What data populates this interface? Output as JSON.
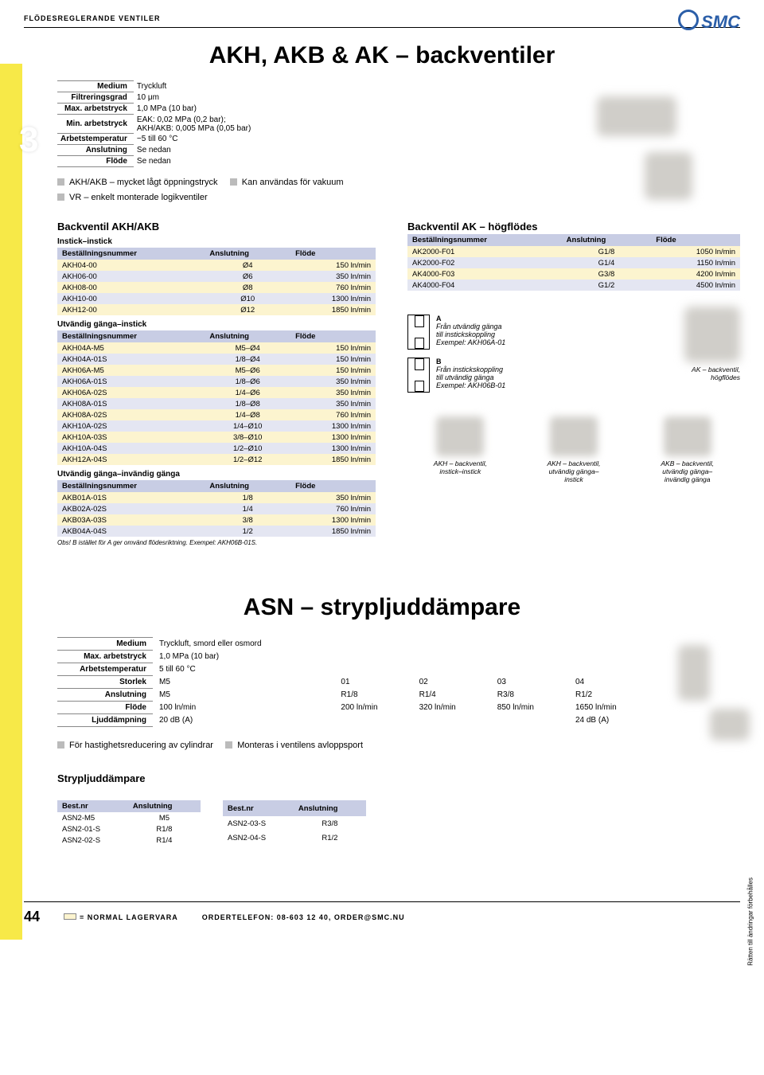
{
  "colors": {
    "yellow_strip": "#f7e948",
    "table_header": "#c8cde4",
    "row_odd": "#fcf4cf",
    "row_even": "#e4e6f2",
    "logo": "#2b5ea8",
    "bullet_square": "#bbbbbb"
  },
  "header": {
    "category": "FLÖDESREGLERANDE VENTILER",
    "logo": "SMC",
    "section_number": "3"
  },
  "title1": "AKH, AKB & AK – backventiler",
  "spec1": {
    "rows": [
      [
        "Medium",
        "Tryckluft"
      ],
      [
        "Filtreringsgrad",
        "10 μm"
      ],
      [
        "Max. arbetstryck",
        "1,0 MPa (10 bar)"
      ],
      [
        "Min. arbetstryck",
        "EAK: 0,02 MPa (0,2 bar);\nAKH/AKB: 0,005 MPa (0,05 bar)"
      ],
      [
        "Arbetstemperatur",
        "−5 till 60 °C"
      ],
      [
        "Anslutning",
        "Se nedan"
      ],
      [
        "Flöde",
        "Se nedan"
      ]
    ]
  },
  "bullets1": [
    "AKH/AKB – mycket lågt öppningstryck",
    "Kan användas för vakuum",
    "VR – enkelt monterade logikventiler"
  ],
  "left": {
    "heading": "Backventil AKH/AKB",
    "sub1": "Instick–instick",
    "cols": [
      "Beställningsnummer",
      "Anslutning",
      "Flöde"
    ],
    "t1": [
      [
        "AKH04-00",
        "Ø4",
        "150 ln/min"
      ],
      [
        "AKH06-00",
        "Ø6",
        "350 ln/min"
      ],
      [
        "AKH08-00",
        "Ø8",
        "760 ln/min"
      ],
      [
        "AKH10-00",
        "Ø10",
        "1300 ln/min"
      ],
      [
        "AKH12-00",
        "Ø12",
        "1850 ln/min"
      ]
    ],
    "sub2": "Utvändig gänga–instick",
    "t2": [
      [
        "AKH04A-M5",
        "M5–Ø4",
        "150 ln/min"
      ],
      [
        "AKH04A-01S",
        "1/8–Ø4",
        "150 ln/min"
      ],
      [
        "AKH06A-M5",
        "M5–Ø6",
        "150 ln/min"
      ],
      [
        "AKH06A-01S",
        "1/8–Ø6",
        "350 ln/min"
      ],
      [
        "AKH06A-02S",
        "1/4–Ø6",
        "350 ln/min"
      ],
      [
        "AKH08A-01S",
        "1/8–Ø8",
        "350 ln/min"
      ],
      [
        "AKH08A-02S",
        "1/4–Ø8",
        "760 ln/min"
      ],
      [
        "AKH10A-02S",
        "1/4–Ø10",
        "1300 ln/min"
      ],
      [
        "AKH10A-03S",
        "3/8–Ø10",
        "1300 ln/min"
      ],
      [
        "AKH10A-04S",
        "1/2–Ø10",
        "1300 ln/min"
      ],
      [
        "AKH12A-04S",
        "1/2–Ø12",
        "1850 ln/min"
      ]
    ],
    "sub3": "Utvändig gänga–invändig gänga",
    "t3": [
      [
        "AKB01A-01S",
        "1/8",
        "350 ln/min"
      ],
      [
        "AKB02A-02S",
        "1/4",
        "760 ln/min"
      ],
      [
        "AKB03A-03S",
        "3/8",
        "1300 ln/min"
      ],
      [
        "AKB04A-04S",
        "1/2",
        "1850 ln/min"
      ]
    ],
    "obs": "Obs! B istället för A ger omvänd flödesriktning. Exempel: AKH06B-01S."
  },
  "right": {
    "heading": "Backventil AK – högflödes",
    "cols": [
      "Beställningsnummer",
      "Anslutning",
      "Flöde"
    ],
    "t1": [
      [
        "AK2000-F01",
        "G1/8",
        "1050 ln/min"
      ],
      [
        "AK2000-F02",
        "G1/4",
        "1150 ln/min"
      ],
      [
        "AK4000-F03",
        "G3/8",
        "4200 ln/min"
      ],
      [
        "AK4000-F04",
        "G1/2",
        "4500 ln/min"
      ]
    ],
    "diagA": {
      "label": "A",
      "text": "Från utvändig gänga\ntill instickskoppling\nExempel: AKH06A-01"
    },
    "diagB": {
      "label": "B",
      "text": "Från instickskoppling\ntill utvändig gänga\nExempel: AKH06B-01"
    },
    "cap_ak": "AK – backventil,\nhögflödes",
    "caps": [
      "AKH – backventil,\ninstick–instick",
      "AKH – backventil,\nutvändig gänga–\ninstick",
      "AKB – backventil,\nutvändig gänga–\ninvändig gänga"
    ]
  },
  "title2": "ASN – strypljuddämpare",
  "spec2": {
    "rows": [
      [
        "Medium",
        "Tryckluft, smord eller osmord",
        "",
        "",
        "",
        ""
      ],
      [
        "Max. arbetstryck",
        "1,0 MPa (10 bar)",
        "",
        "",
        "",
        ""
      ],
      [
        "Arbetstemperatur",
        "5 till 60 °C",
        "",
        "",
        "",
        ""
      ],
      [
        "Storlek",
        "M5",
        "01",
        "02",
        "03",
        "04"
      ],
      [
        "Anslutning",
        "M5",
        "R1/8",
        "R1/4",
        "R3/8",
        "R1/2"
      ],
      [
        "Flöde",
        "100 ln/min",
        "200 ln/min",
        "320 ln/min",
        "850 ln/min",
        "1650 ln/min"
      ],
      [
        "Ljuddämpning",
        "20 dB (A)",
        "",
        "",
        "",
        "24 dB (A)"
      ]
    ]
  },
  "bullets2": [
    "För hastighetsreducering av cylindrar",
    "Monteras i ventilens avloppsport"
  ],
  "mini": {
    "heading": "Strypljuddämpare",
    "cols": [
      "Best.nr",
      "Anslutning"
    ],
    "t1": [
      [
        "ASN2-M5",
        "M5"
      ],
      [
        "ASN2-01-S",
        "R1/8"
      ],
      [
        "ASN2-02-S",
        "R1/4"
      ]
    ],
    "t2": [
      [
        "ASN2-03-S",
        "R3/8"
      ],
      [
        "ASN2-04-S",
        "R1/2"
      ]
    ]
  },
  "footer": {
    "page": "44",
    "lager": "= NORMAL LAGERVARA",
    "order": "ORDERTELEFON: 08-603 12 40, ORDER@SMC.NU"
  },
  "side": "Rätten till ändringar förbehålles"
}
